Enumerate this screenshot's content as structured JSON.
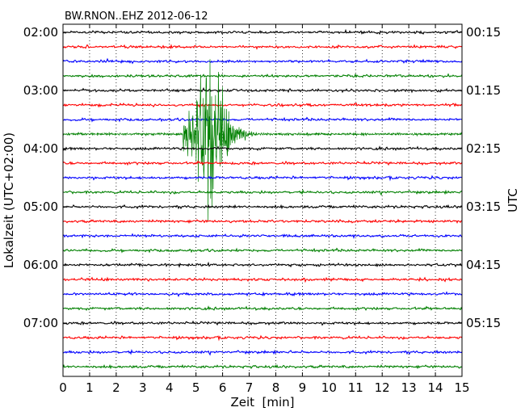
{
  "chart_data": {
    "type": "line",
    "title": "BW.RNON..EHZ 2012-06-12",
    "xlabel": "Zeit  [min]",
    "ylabel_left": "Lokalzeit (UTC+02:00)",
    "ylabel_right": "UTC",
    "xlim": [
      0,
      15
    ],
    "x_ticks": [
      "0",
      "1",
      "2",
      "3",
      "4",
      "5",
      "6",
      "7",
      "8",
      "9",
      "10",
      "11",
      "12",
      "13",
      "14",
      "15"
    ],
    "left_time_labels": [
      "02:00",
      "03:00",
      "04:00",
      "05:00",
      "06:00",
      "07:00"
    ],
    "right_time_labels": [
      "00:15",
      "01:15",
      "02:15",
      "03:15",
      "04:15",
      "05:15"
    ],
    "trace_count": 24,
    "trace_interval_minutes": 15,
    "trace_colors": [
      "#000000",
      "#ff0000",
      "#0000ff",
      "#008000"
    ],
    "grid": "vertical dotted",
    "event": {
      "trace_index": 7,
      "onset_min": 4.5,
      "peak_min": 5.6,
      "end_min": 7.5
    }
  }
}
